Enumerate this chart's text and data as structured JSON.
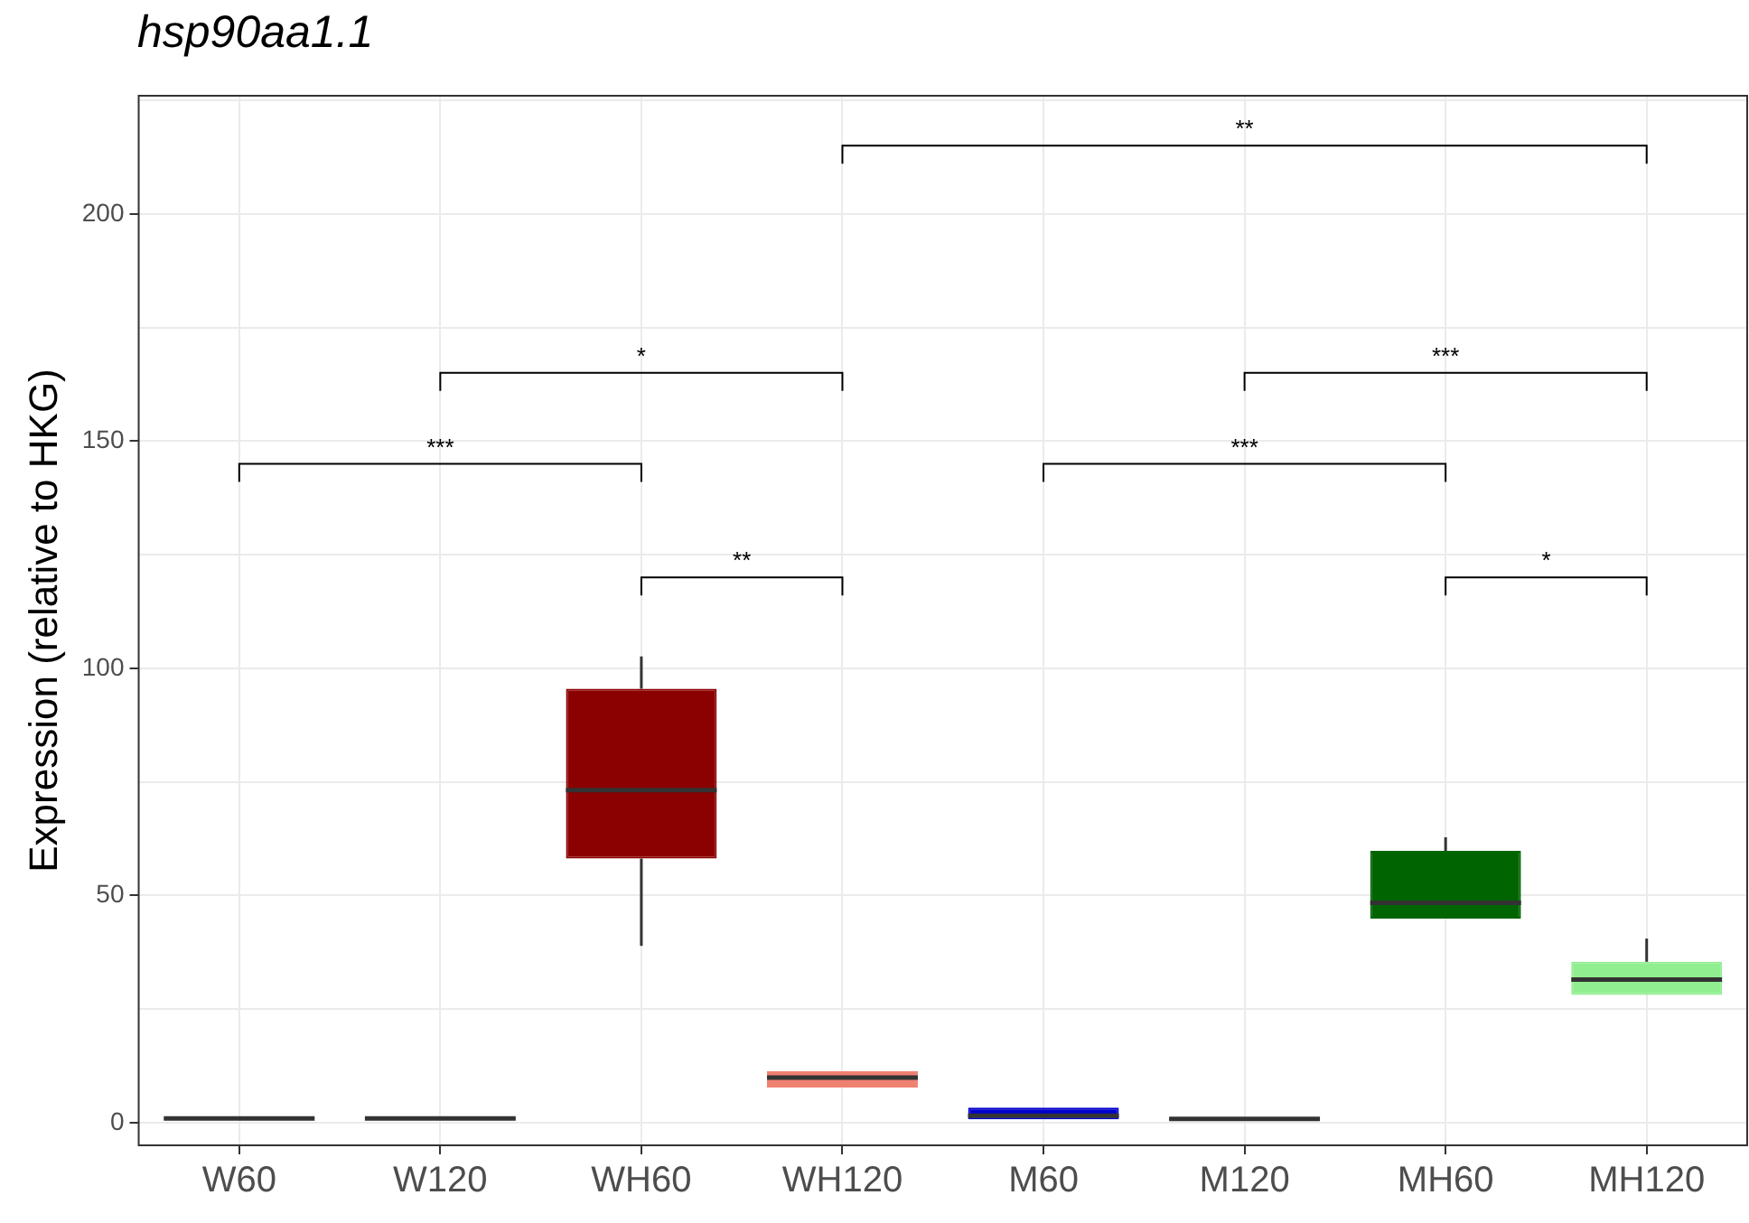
{
  "chart_data": {
    "type": "box",
    "title": "hsp90aa1.1",
    "ylabel": "Expression (relative to HKG)",
    "categories": [
      "W60",
      "W120",
      "WH60",
      "WH120",
      "M60",
      "M120",
      "MH60",
      "MH120"
    ],
    "colors": [
      "#333333",
      "#333333",
      "#8b0000",
      "#f08070",
      "#0000cd",
      "#333333",
      "#006400",
      "#90ee90"
    ],
    "boxes": [
      {
        "low": 0.5,
        "q1": 0.7,
        "median": 0.9,
        "q3": 1.1,
        "high": 1.3
      },
      {
        "low": 0.5,
        "q1": 0.7,
        "median": 0.9,
        "q3": 1.1,
        "high": 1.3
      },
      {
        "low": 38.9,
        "q1": 58.1,
        "median": 73.2,
        "q3": 95.5,
        "high": 102.6
      },
      {
        "low": 7.5,
        "q1": 7.7,
        "median": 9.9,
        "q3": 11.3,
        "high": 11.5
      },
      {
        "low": 0.7,
        "q1": 0.7,
        "median": 1.5,
        "q3": 3.3,
        "high": 3.3
      },
      {
        "low": 0.5,
        "q1": 0.6,
        "median": 0.8,
        "q3": 1.0,
        "high": 1.1
      },
      {
        "low": 44.4,
        "q1": 44.9,
        "median": 48.4,
        "q3": 59.8,
        "high": 62.8
      },
      {
        "low": 27.5,
        "q1": 28.1,
        "median": 31.5,
        "q3": 35.4,
        "high": 40.5
      }
    ],
    "ylim": [
      -5,
      226
    ],
    "yticks": [
      0,
      {
        "value": 25,
        "label": null
      },
      50,
      {
        "value": 75,
        "label": null
      },
      100,
      {
        "value": 125,
        "label": null
      },
      150,
      {
        "value": 175,
        "label": null
      },
      200,
      {
        "value": 225,
        "label": null
      }
    ],
    "grid": true,
    "legend": false,
    "annotations": [
      "***",
      "*",
      "**",
      "**",
      "***",
      "***",
      "*"
    ]
  }
}
